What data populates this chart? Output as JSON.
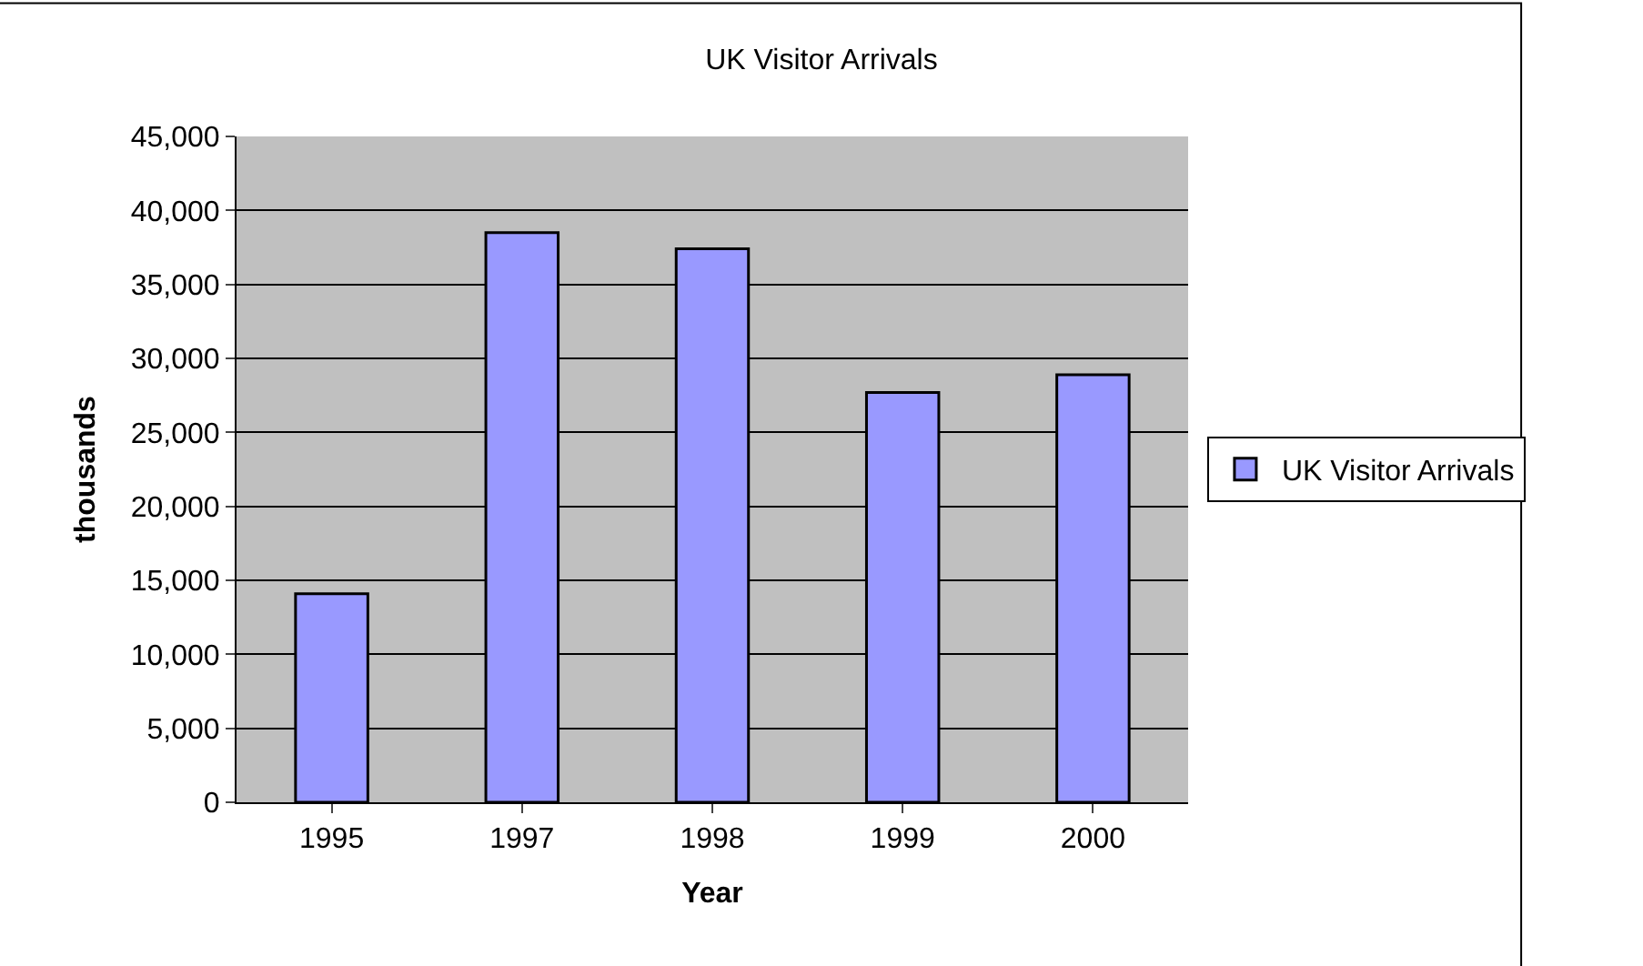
{
  "chart_data": {
    "type": "bar",
    "title": "UK Visitor Arrivals",
    "xlabel": "Year",
    "ylabel": "thousands",
    "categories": [
      "1995",
      "1997",
      "1998",
      "1999",
      "2000"
    ],
    "series": [
      {
        "name": "UK Visitor Arrivals",
        "color": "#9999ff",
        "values": [
          14100,
          38500,
          37400,
          27700,
          28900
        ]
      }
    ],
    "ylim": [
      0,
      45000
    ],
    "yticks": [
      {
        "value": 0,
        "label": "0"
      },
      {
        "value": 5000,
        "label": "5,000"
      },
      {
        "value": 10000,
        "label": "10,000"
      },
      {
        "value": 15000,
        "label": "15,000"
      },
      {
        "value": 20000,
        "label": "20,000"
      },
      {
        "value": 25000,
        "label": "25,000"
      },
      {
        "value": 30000,
        "label": "30,000"
      },
      {
        "value": 35000,
        "label": "35,000"
      },
      {
        "value": 40000,
        "label": "40,000"
      },
      {
        "value": 45000,
        "label": "45,000"
      }
    ],
    "grid": "y",
    "legend": "right"
  }
}
